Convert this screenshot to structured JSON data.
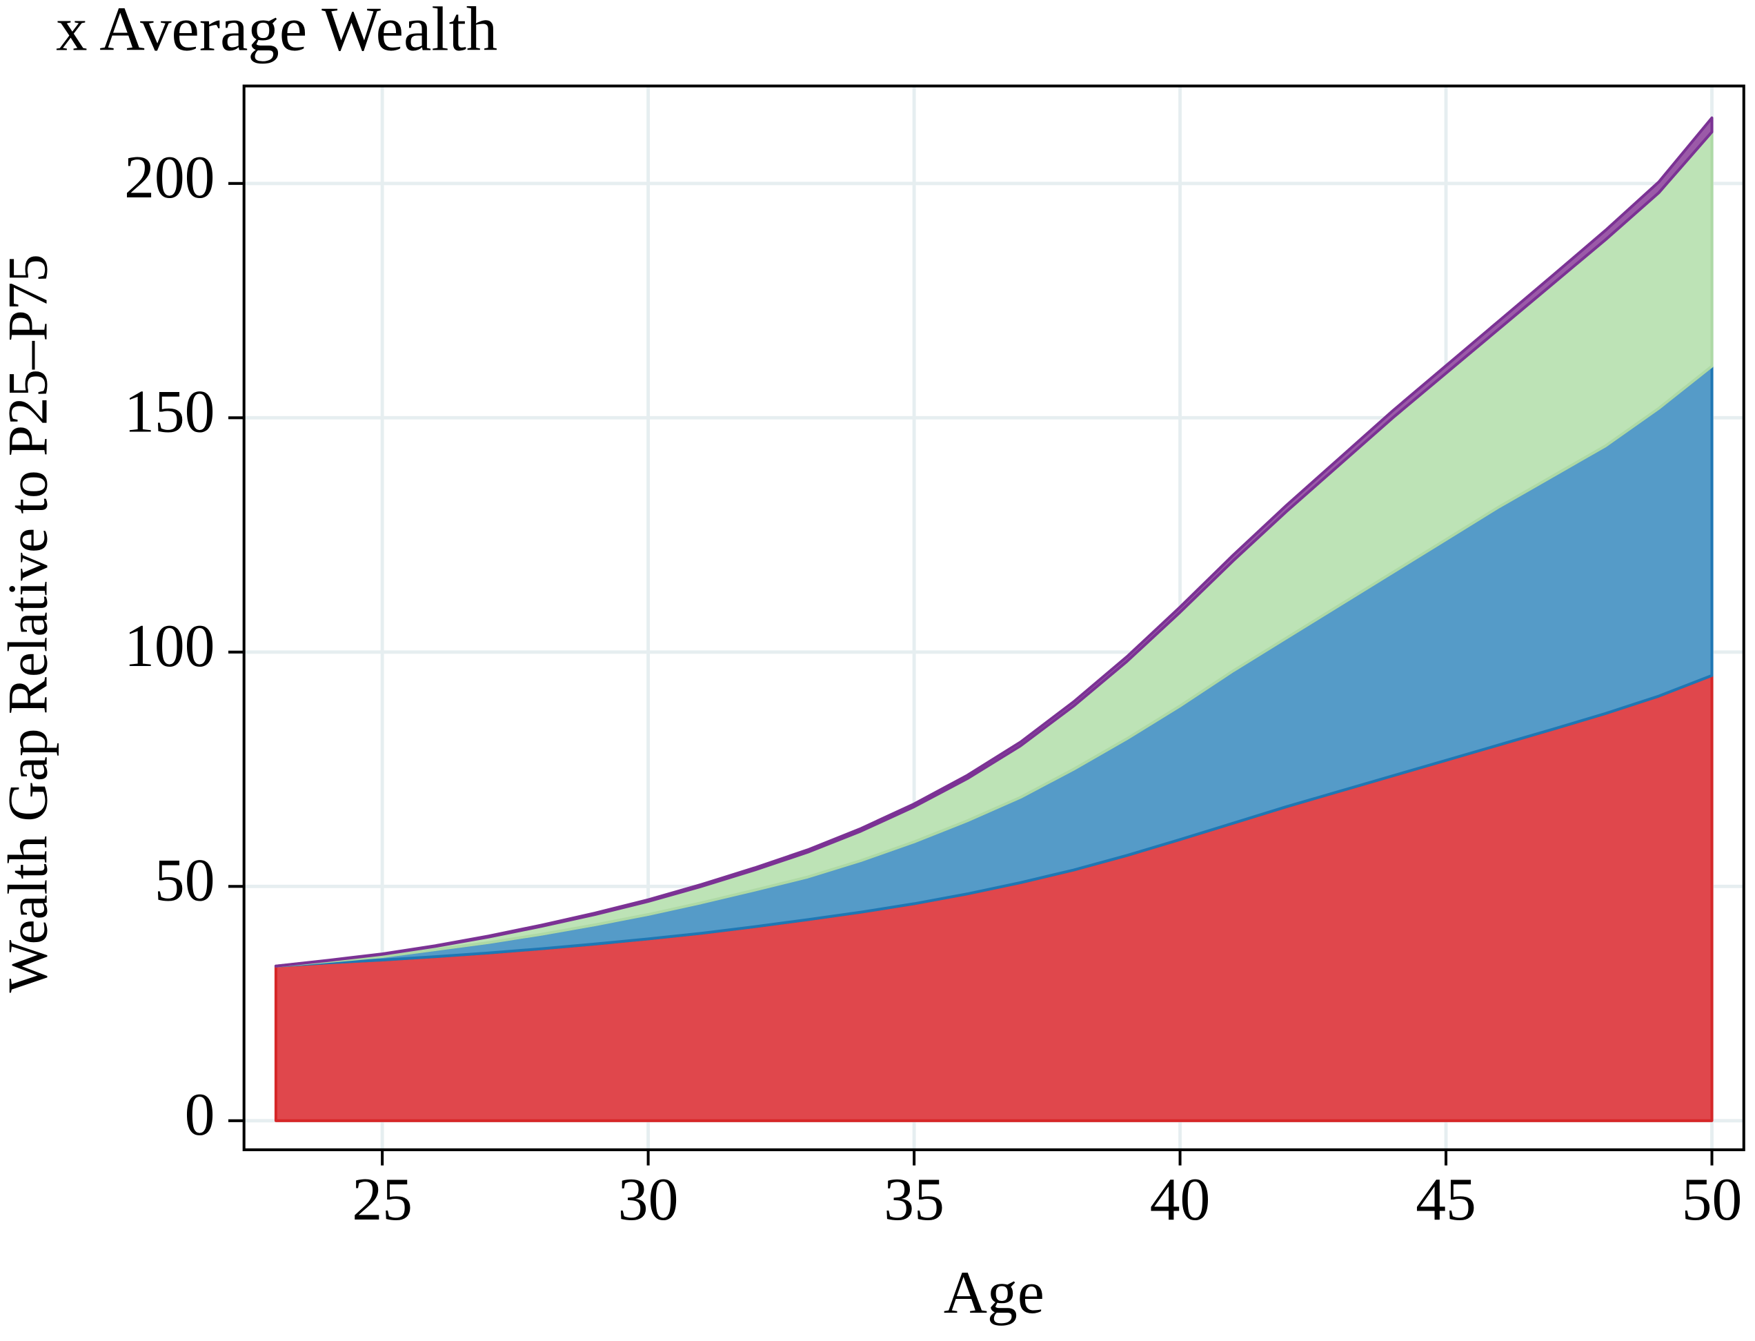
{
  "chart_data": {
    "type": "stacked_area",
    "title": "x Average Wealth",
    "x_label": "Age",
    "y_label": "Wealth Gap Relative to P25–P75",
    "x": [
      23,
      24,
      25,
      26,
      27,
      28,
      29,
      30,
      31,
      32,
      33,
      34,
      35,
      36,
      37,
      38,
      39,
      40,
      41,
      42,
      43,
      44,
      45,
      46,
      47,
      48,
      49,
      50
    ],
    "series": [
      {
        "color": "#d62728",
        "fill": "#e0474c",
        "values": [
          33,
          33.7,
          34.3,
          35,
          35.8,
          36.7,
          37.7,
          38.8,
          40,
          41.4,
          42.9,
          44.5,
          46.3,
          48.4,
          50.8,
          53.5,
          56.6,
          60,
          63.5,
          67,
          70.3,
          73.6,
          76.9,
          80.2,
          83.5,
          86.9,
          90.6,
          95
        ]
      },
      {
        "color": "#1f77b4",
        "fill": "#559bc8",
        "values": [
          0,
          0.3,
          0.7,
          1.5,
          2.2,
          3.1,
          4.1,
          5.2,
          6.5,
          7.8,
          9.1,
          11,
          13.2,
          15.6,
          18.2,
          21.5,
          24.9,
          28.5,
          32.5,
          36,
          39.7,
          43.4,
          47.1,
          50.8,
          54,
          57.1,
          61.4,
          66
        ]
      },
      {
        "color": "#aed9a5",
        "fill": "#bde3b6",
        "values": [
          0,
          0.2,
          0.5,
          0.7,
          1.2,
          1.7,
          2.2,
          2.8,
          3.5,
          4.3,
          5.3,
          6.3,
          7.5,
          9,
          11,
          13.5,
          16.5,
          20,
          23.5,
          27,
          30,
          33,
          35.5,
          38,
          41,
          44,
          46,
          50
        ]
      },
      {
        "color": "#7b3294",
        "fill": "#9b5aa8",
        "values": [
          0,
          0.05,
          0.1,
          0.15,
          0.2,
          0.25,
          0.3,
          0.35,
          0.4,
          0.45,
          0.5,
          0.55,
          0.6,
          0.7,
          0.8,
          0.9,
          1,
          1.1,
          1.2,
          1.3,
          1.4,
          1.5,
          1.6,
          1.7,
          1.8,
          2,
          2.3,
          3
        ]
      }
    ],
    "xlim": [
      22.4,
      50.6
    ],
    "ylim": [
      -6.2,
      220.8
    ],
    "xticks": [
      25,
      30,
      35,
      40,
      45,
      50
    ],
    "yticks": [
      0,
      50,
      100,
      150,
      200
    ],
    "grid": true
  }
}
